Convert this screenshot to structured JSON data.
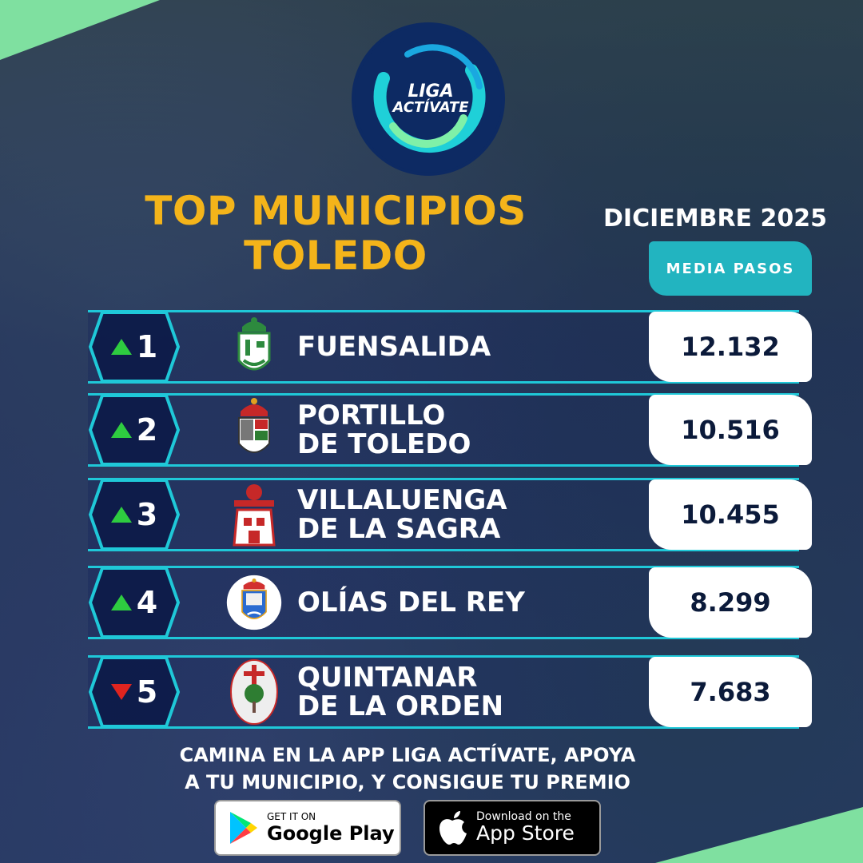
{
  "logo": {
    "line1": "LIGA",
    "line2": "ACTÍVATE"
  },
  "title": {
    "line1": "TOP MUNICIPIOS",
    "line2": "TOLEDO"
  },
  "period": "DICIEMBRE 2025",
  "column_label": "MEDIA PASOS",
  "rankings": [
    {
      "rank": "1",
      "trend": "up",
      "trend_icon": "triangle-up-icon",
      "name_line1": "FUENSALIDA",
      "name_line2": "",
      "value": "12.132",
      "crest": "fuensalida-crest-icon"
    },
    {
      "rank": "2",
      "trend": "up",
      "trend_icon": "triangle-up-icon",
      "name_line1": "PORTILLO",
      "name_line2": "DE TOLEDO",
      "value": "10.516",
      "crest": "portillo-crest-icon"
    },
    {
      "rank": "3",
      "trend": "up",
      "trend_icon": "triangle-up-icon",
      "name_line1": "VILLALUENGA",
      "name_line2": "DE LA SAGRA",
      "value": "10.455",
      "crest": "villaluenga-crest-icon"
    },
    {
      "rank": "4",
      "trend": "up",
      "trend_icon": "triangle-up-icon",
      "name_line1": "OLÍAS DEL REY",
      "name_line2": "",
      "value": "8.299",
      "crest": "olias-crest-icon"
    },
    {
      "rank": "5",
      "trend": "down",
      "trend_icon": "triangle-down-icon",
      "name_line1": "QUINTANAR",
      "name_line2": "DE LA ORDEN",
      "value": "7.683",
      "crest": "quintanar-crest-icon"
    }
  ],
  "footer": {
    "line1": "CAMINA EN LA APP LIGA ACTÍVATE, APOYA",
    "line2": "A TU MUNICIPIO, Y CONSIGUE TU PREMIO"
  },
  "stores": {
    "google_play": {
      "small": "GET IT ON",
      "big": "Google Play"
    },
    "app_store": {
      "small": "Download on the",
      "big": "App Store"
    }
  },
  "colors": {
    "accent_teal": "#1fc8d8",
    "title_yellow": "#f4b41a",
    "trend_up": "#2ecc40",
    "trend_down": "#e0241f",
    "corner_green": "#7fe0a0"
  }
}
